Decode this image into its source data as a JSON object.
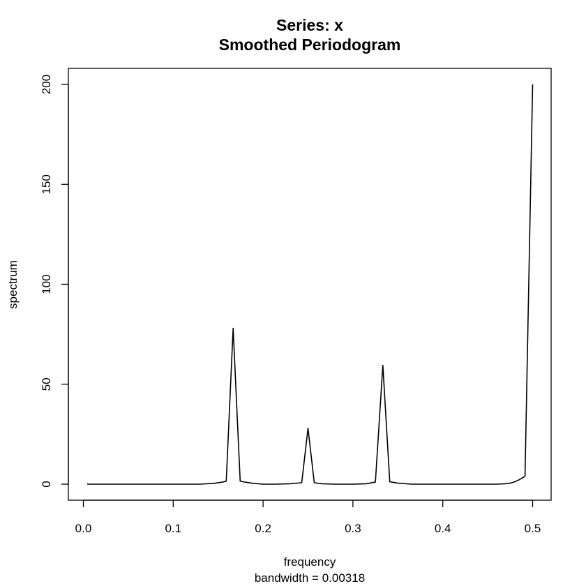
{
  "chart_data": {
    "type": "line",
    "title": "Series: x",
    "subtitle": "Smoothed Periodogram",
    "xlabel": "frequency",
    "xsublabel": "bandwidth = 0.00318",
    "ylabel": "spectrum",
    "xlim": [
      0.0,
      0.5
    ],
    "ylim": [
      0,
      200
    ],
    "xticks": [
      "0.0",
      "0.1",
      "0.2",
      "0.3",
      "0.4",
      "0.5"
    ],
    "yticks": [
      "0",
      "50",
      "100",
      "150",
      "200"
    ],
    "grid": false,
    "series": [
      {
        "color": "#000000",
        "x": [
          0.0043,
          0.1,
          0.13,
          0.145,
          0.155,
          0.159,
          0.1667,
          0.1745,
          0.18,
          0.19,
          0.2,
          0.215,
          0.23,
          0.243,
          0.25,
          0.257,
          0.265,
          0.28,
          0.3,
          0.315,
          0.325,
          0.3333,
          0.341,
          0.35,
          0.365,
          0.38,
          0.4,
          0.43,
          0.46,
          0.47,
          0.475,
          0.48,
          0.485,
          0.49,
          0.4915,
          0.5
        ],
        "y": [
          0,
          0,
          0,
          0.4,
          1.0,
          1.5,
          78,
          1.5,
          1.0,
          0.3,
          0,
          0,
          0.2,
          0.7,
          28,
          0.7,
          0.2,
          0,
          0,
          0.2,
          1.0,
          59.5,
          1.2,
          0.5,
          0,
          0,
          0,
          0,
          0,
          0.2,
          0.5,
          1.2,
          2.2,
          3.5,
          4,
          200
        ]
      }
    ]
  }
}
